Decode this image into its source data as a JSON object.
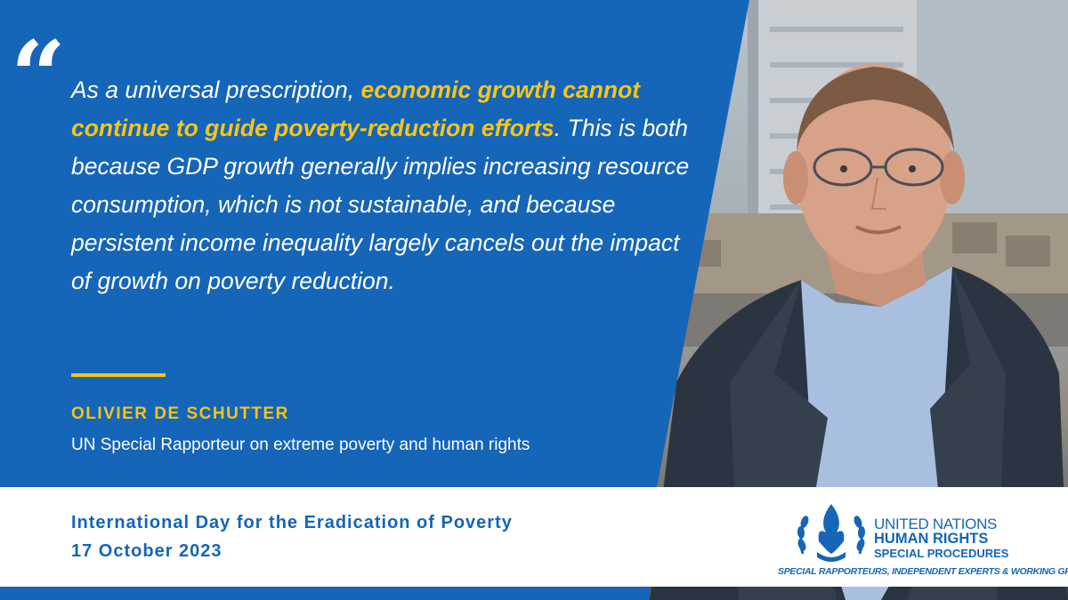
{
  "quote": {
    "mark": "“",
    "text_before": "As a universal prescription, ",
    "highlight": "economic growth cannot continue to guide poverty-reduction efforts",
    "text_after": ". This is both because GDP growth generally implies increasing resource consumption, which is not sustainable, and because persistent income inequality largely cancels out the impact of growth on poverty reduction."
  },
  "speaker": {
    "name": "OLIVIER DE SCHUTTER",
    "role": "UN Special Rapporteur on extreme poverty and human rights"
  },
  "event": {
    "title": "International Day for the Eradication of Poverty",
    "date": "17 October 2023"
  },
  "logo": {
    "line1": "UNITED NATIONS",
    "line2": "HUMAN RIGHTS",
    "line3": "SPECIAL PROCEDURES",
    "tagline": "SPECIAL RAPPORTEURS, INDEPENDENT EXPERTS & WORKING GROUPS",
    "icon": "un-human-rights-emblem-icon"
  },
  "colors": {
    "brand_blue": "#1565b8",
    "accent_yellow": "#f5c518",
    "text_white": "#ffffff"
  }
}
